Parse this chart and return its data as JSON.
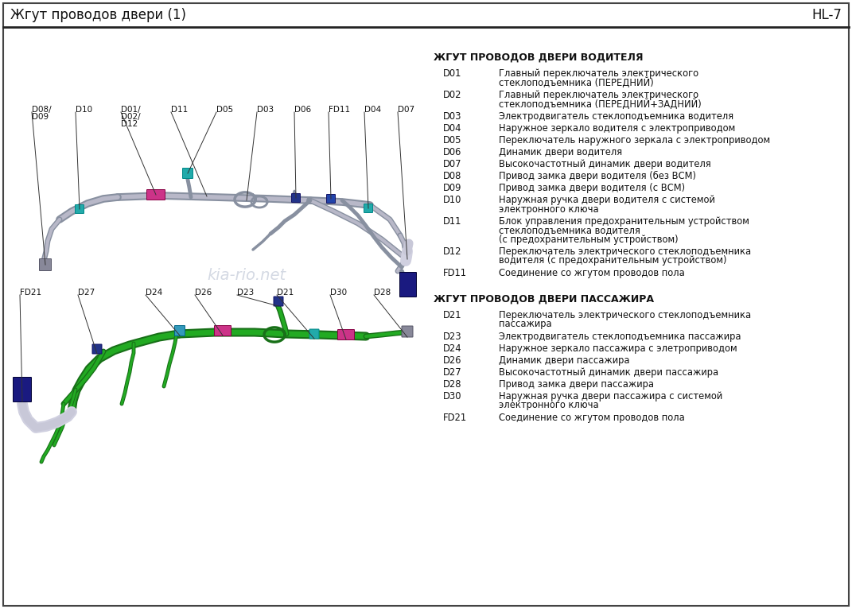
{
  "title_left": "Жгут проводов двери (1)",
  "title_right": "HL-7",
  "bg_color": "#ffffff",
  "section1_title": "ЖГУТ ПРОВОДОВ ДВЕРИ ВОДИТЕЛЯ",
  "section2_title": "ЖГУТ ПРОВОДОВ ДВЕРИ ПАССАЖИРА",
  "entries_driver": [
    [
      "D01",
      "Главный переключатель электрического\nстеклоподъемника (ПЕРЕДНИЙ)"
    ],
    [
      "D02",
      "Главный переключатель электрического\nстеклоподъемника (ПЕРЕДНИЙ+ЗАДНИЙ)"
    ],
    [
      "D03",
      "Электродвигатель стеклоподъемника водителя"
    ],
    [
      "D04",
      "Наружное зеркало водителя с электроприводом"
    ],
    [
      "D05",
      "Переключатель наружного зеркала с электроприводом"
    ],
    [
      "D06",
      "Динамик двери водителя"
    ],
    [
      "D07",
      "Высокочастотный динамик двери водителя"
    ],
    [
      "D08",
      "Привод замка двери водителя (без ВСМ)"
    ],
    [
      "D09",
      "Привод замка двери водителя (с ВСМ)"
    ],
    [
      "D10",
      "Наружная ручка двери водителя с системой\nэлектронного ключа"
    ],
    [
      "D11",
      "Блок управления предохранительным устройством\nстеклоподъемника водителя\n(с предохранительным устройством)"
    ],
    [
      "D12",
      "Переключатель электрического стеклоподъемника\nводителя (с предохранительным устройством)"
    ],
    [
      "FD11",
      "Соединение со жгутом проводов пола"
    ]
  ],
  "entries_passenger": [
    [
      "D21",
      "Переключатель электрического стеклоподъемника\nпассажира"
    ],
    [
      "D23",
      "Электродвигатель стеклоподъемника пассажира"
    ],
    [
      "D24",
      "Наружное зеркало пассажира с элетроприводом"
    ],
    [
      "D26",
      "Динамик двери пассажира"
    ],
    [
      "D27",
      "Высокочастотный динамик двери пассажира"
    ],
    [
      "D28",
      "Привод замка двери пассажира"
    ],
    [
      "D30",
      "Наружная ручка двери пассажира с системой\nэлектронного ключа"
    ],
    [
      "FD21",
      "Соединение со жгутом проводов пола"
    ]
  ],
  "watermark": "kia-rio.net",
  "gray_wire": "#b8b8c8",
  "gray_wire_dark": "#8890a0",
  "green_wire": "#22aa22",
  "green_wire_dark": "#187018",
  "pink_conn": "#cc3388",
  "teal_conn": "#22aaaa",
  "blue_conn": "#223388",
  "cyan_conn": "#44bbcc",
  "gray_conn": "#888899"
}
